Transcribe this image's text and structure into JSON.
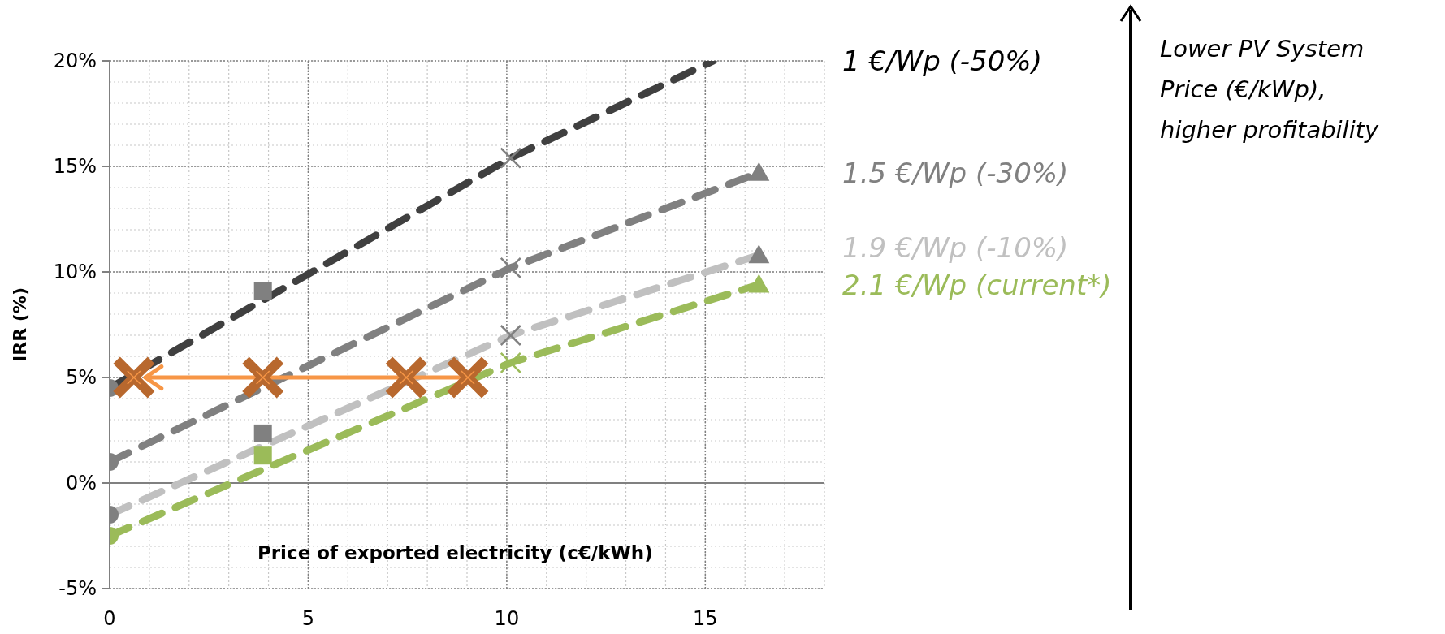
{
  "chart_data": {
    "type": "line",
    "xlabel": "Price of exported electricity (c€/kWh)",
    "ylabel": "IRR (%)",
    "xlim": [
      0,
      18
    ],
    "xticks": [
      0,
      5,
      10,
      15
    ],
    "ylim": [
      -5,
      20
    ],
    "yticks": [
      {
        "value": -5,
        "label": "-5%"
      },
      {
        "value": 0,
        "label": "0%"
      },
      {
        "value": 5,
        "label": "5%"
      },
      {
        "value": 10,
        "label": "10%"
      },
      {
        "value": 15,
        "label": "15%"
      },
      {
        "value": 20,
        "label": "20%"
      }
    ],
    "grid": true,
    "legend": false,
    "line_style": "dashed",
    "series": [
      {
        "name": "1 €/Wp (-50%)",
        "color": "#404040",
        "marker": "none",
        "x": [
          0,
          10.1,
          15.2
        ],
        "values": [
          4.5,
          15.4,
          20
        ]
      },
      {
        "name": "1.5 €/Wp (-30%)",
        "color": "#808080",
        "marker": "none",
        "x": [
          0,
          10.1,
          16.35
        ],
        "values": [
          1.0,
          10.2,
          14.7
        ]
      },
      {
        "name": "1.9 €/Wp (-10%)",
        "color": "#c0c0c0",
        "marker": "none",
        "x": [
          0,
          10.1,
          16.35
        ],
        "values": [
          -1.5,
          7.0,
          10.8
        ]
      },
      {
        "name": "2.1 €/Wp (current*)",
        "color": "#9bbb59",
        "marker": "none",
        "x": [
          0,
          10.1,
          16.35
        ],
        "values": [
          -2.5,
          5.7,
          9.4
        ]
      },
      {
        "color": "#808080",
        "type": "scatter",
        "marker": "circle",
        "x": [
          0,
          0,
          0
        ],
        "values": [
          4.5,
          1.0,
          -1.5
        ]
      },
      {
        "color": "#9bbb59",
        "type": "scatter",
        "marker": "circle",
        "x": [
          0
        ],
        "values": [
          -2.5
        ]
      },
      {
        "color": "#808080",
        "type": "scatter",
        "marker": "square",
        "x": [
          3.86,
          3.86
        ],
        "values": [
          9.1,
          2.35
        ]
      },
      {
        "color": "#9bbb59",
        "type": "scatter",
        "marker": "square",
        "x": [
          3.86
        ],
        "values": [
          1.3
        ]
      },
      {
        "color": "#808080",
        "type": "scatter",
        "marker": "cross",
        "x": [
          10.1,
          10.1,
          10.1
        ],
        "values": [
          15.4,
          10.2,
          7.0
        ]
      },
      {
        "color": "#9bbb59",
        "type": "scatter",
        "marker": "cross",
        "x": [
          10.1
        ],
        "values": [
          5.7
        ]
      },
      {
        "color": "#808080",
        "type": "scatter",
        "marker": "triangle",
        "x": [
          16.35,
          16.35
        ],
        "values": [
          14.7,
          10.8
        ]
      },
      {
        "color": "#9bbb59",
        "type": "scatter",
        "marker": "triangle",
        "x": [
          16.35
        ],
        "values": [
          9.4
        ]
      },
      {
        "color": "#f79646",
        "type": "line",
        "line_style": "solid",
        "x": [
          9.0,
          0.9
        ],
        "values": [
          5.0,
          5.0
        ]
      },
      {
        "color": "#b8682e",
        "type": "scatter",
        "marker": "cross",
        "x": [
          0.61,
          3.86,
          7.47,
          9.02
        ],
        "values": [
          5.0,
          5.0,
          5.0,
          5.0
        ]
      }
    ],
    "annotations": [
      "Lower PV System Price (€/kWp), higher profitability"
    ]
  }
}
